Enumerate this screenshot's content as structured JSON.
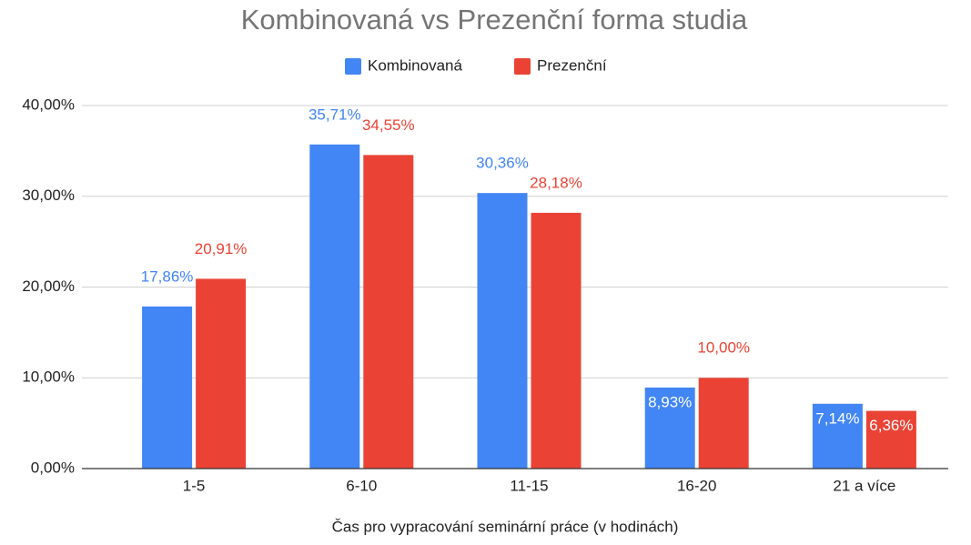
{
  "chart_data": {
    "type": "bar",
    "title": "Kombinovaná vs Prezenční forma studia",
    "x_label": "Čas pro vypracování seminární práce (v hodinách)",
    "categories": [
      "1-5",
      "6-10",
      "11-15",
      "16-20",
      "21 a více"
    ],
    "series": [
      {
        "name": "Kombinovaná",
        "color": "#4285f4",
        "values": [
          17.86,
          35.71,
          30.36,
          8.93,
          7.14
        ],
        "value_labels": [
          "17,86%",
          "35,71%",
          "30,36%",
          "8,93%",
          "7,14%"
        ]
      },
      {
        "name": "Prezenční",
        "color": "#ea4335",
        "values": [
          20.91,
          34.55,
          28.18,
          10.0,
          6.36
        ],
        "value_labels": [
          "20,91%",
          "34,55%",
          "28,18%",
          "10,00%",
          "6,36%"
        ]
      }
    ],
    "ylim": [
      0,
      40
    ],
    "yticks": [
      {
        "value": 0,
        "label": "0,00%"
      },
      {
        "value": 10,
        "label": "10,00%"
      },
      {
        "value": 20,
        "label": "20,00%"
      },
      {
        "value": 30,
        "label": "30,00%"
      },
      {
        "value": 40,
        "label": "40,00%"
      }
    ],
    "grid": true,
    "legend": "top"
  }
}
